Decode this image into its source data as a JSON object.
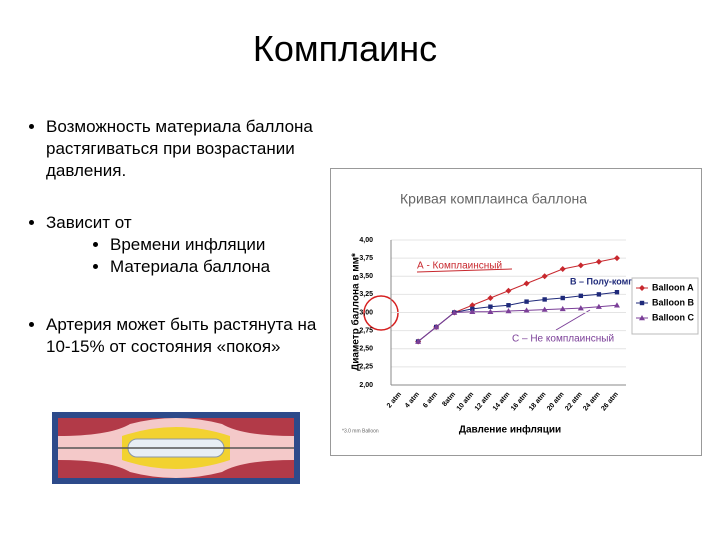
{
  "title": "Комплаинс",
  "bullets": [
    "Возможность материала баллона растягиваться при возрастании давления.",
    "Зависит от"
  ],
  "sub_bullets": [
    "Времени инфляции",
    "Материала баллона"
  ],
  "note": "Артерия может быть растянута на 10-15% от состояния «покоя»",
  "chart_data": {
    "type": "line",
    "title": "Кривая комплаинса баллона",
    "x_label": "Давление инфляции",
    "y_label": "Диаметр баллона в мм*",
    "footnote": "*3.0 mm Balloon",
    "annotations": [
      "А - Комплаинсный",
      "В – Полу-комплаинсный",
      "С – Не комплаинсный"
    ],
    "categories": [
      "2 atm",
      "4 atm",
      "6 atm",
      "8atm",
      "10 atm",
      "12 atm",
      "14 atm",
      "16 atm",
      "18 atm",
      "20 atm",
      "22 atm",
      "24 atm",
      "26 atm"
    ],
    "series": [
      {
        "name": "Balloon A",
        "color": "#c8282e",
        "marker": "diamond",
        "values": [
          null,
          2.6,
          2.8,
          3.0,
          3.1,
          3.2,
          3.3,
          3.4,
          3.5,
          3.6,
          3.65,
          3.7,
          3.75
        ]
      },
      {
        "name": "Balloon B",
        "color": "#1f2a7a",
        "marker": "square",
        "values": [
          null,
          2.6,
          2.8,
          3.0,
          3.05,
          3.08,
          3.1,
          3.15,
          3.18,
          3.2,
          3.23,
          3.25,
          3.28
        ]
      },
      {
        "name": "Balloon C",
        "color": "#7b3f98",
        "marker": "triangle",
        "values": [
          null,
          2.6,
          2.8,
          3.0,
          3.01,
          3.01,
          3.02,
          3.03,
          3.04,
          3.05,
          3.06,
          3.08,
          3.1
        ]
      }
    ],
    "ylim": [
      2.0,
      4.0
    ],
    "yticks": [
      {
        "value": 2.0,
        "label": "2,00"
      },
      {
        "value": 2.25,
        "label": "2,25"
      },
      {
        "value": 2.5,
        "label": "2,50"
      },
      {
        "value": 2.75,
        "label": "2,75"
      },
      {
        "value": 3.0,
        "label": "3,00"
      },
      {
        "value": 3.25,
        "label": "3,25"
      },
      {
        "value": 3.5,
        "label": "3,50"
      },
      {
        "value": 3.75,
        "label": "3,75"
      },
      {
        "value": 4.0,
        "label": "4,00"
      }
    ],
    "grid": true,
    "legend": "right"
  }
}
